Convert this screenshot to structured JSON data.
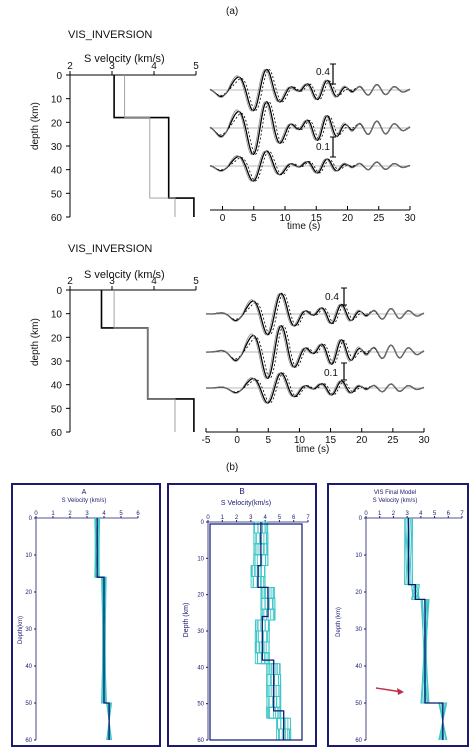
{
  "figure": {
    "label_a": "(a)",
    "label_b": "(b)"
  },
  "colors": {
    "profile": "#000000",
    "reference": "#999999",
    "ensemble": "#3cc6c6",
    "frame": "#1a1a6e",
    "best": "#0a1a70",
    "arrow": "#c0304a"
  },
  "chart_data": [
    {
      "type": "line",
      "panel": "a-top-velocity",
      "title": "VIS_INVERSION",
      "xlabel": "S velocity (km/s)",
      "ylabel": "depth (km)",
      "xlim": [
        2,
        5
      ],
      "ylim": [
        0,
        60
      ],
      "xticks": [
        "2",
        "3",
        "4",
        "5"
      ],
      "yticks": [
        "0",
        "10",
        "20",
        "30",
        "40",
        "50",
        "60"
      ],
      "series": [
        {
          "role": "model",
          "points": [
            [
              3.05,
              0
            ],
            [
              3.05,
              18
            ],
            [
              4.35,
              18
            ],
            [
              4.35,
              52
            ],
            [
              4.95,
              52
            ],
            [
              4.95,
              60
            ]
          ]
        },
        {
          "role": "reference",
          "points": [
            [
              3.3,
              0
            ],
            [
              3.3,
              18
            ],
            [
              3.9,
              18
            ],
            [
              3.9,
              52
            ],
            [
              4.5,
              52
            ],
            [
              4.5,
              60
            ]
          ]
        }
      ]
    },
    {
      "type": "line",
      "panel": "a-top-waveforms",
      "xlabel": "time (s)",
      "xlim": [
        -2,
        30
      ],
      "xticks": [
        "0",
        "5",
        "10",
        "15",
        "20",
        "25",
        "30"
      ],
      "scale_labels": [
        "0.4",
        "0.1"
      ]
    },
    {
      "type": "line",
      "panel": "a-bottom-velocity",
      "title": "VIS_INVERSION",
      "xlabel": "S velocity (km/s)",
      "ylabel": "depth (km)",
      "xlim": [
        2,
        5
      ],
      "ylim": [
        0,
        60
      ],
      "xticks": [
        "2",
        "3",
        "4",
        "5"
      ],
      "yticks": [
        "0",
        "10",
        "20",
        "30",
        "40",
        "50",
        "60"
      ],
      "series": [
        {
          "role": "model",
          "points": [
            [
              2.75,
              0
            ],
            [
              2.75,
              16
            ],
            [
              3.85,
              16
            ],
            [
              3.85,
              46
            ],
            [
              4.95,
              46
            ],
            [
              4.95,
              60
            ]
          ]
        },
        {
          "role": "reference",
          "points": [
            [
              3.05,
              0
            ],
            [
              3.05,
              16
            ],
            [
              3.85,
              16
            ],
            [
              3.85,
              46
            ],
            [
              4.5,
              46
            ],
            [
              4.5,
              60
            ]
          ]
        }
      ]
    },
    {
      "type": "line",
      "panel": "a-bottom-waveforms",
      "xlabel": "time (s)",
      "xlim": [
        -5,
        30
      ],
      "xticks": [
        "-5",
        "0",
        "5",
        "10",
        "15",
        "20",
        "25",
        "30"
      ],
      "scale_labels": [
        "0.4",
        "0.1"
      ]
    },
    {
      "type": "line",
      "panel": "b-A",
      "title": "A",
      "xlabel": "S Velocity (km/s)",
      "ylabel": "Depth(km)",
      "xlim": [
        0,
        6
      ],
      "ylim": [
        0,
        60
      ],
      "xticks": [
        "0",
        "1",
        "2",
        "3",
        "4",
        "5",
        "6"
      ],
      "yticks": [
        "0",
        "10",
        "20",
        "30",
        "40",
        "50",
        "60"
      ],
      "best": [
        [
          3.6,
          0
        ],
        [
          3.6,
          16
        ],
        [
          4.0,
          16
        ],
        [
          4.0,
          50
        ],
        [
          4.3,
          50
        ],
        [
          4.3,
          60
        ]
      ]
    },
    {
      "type": "line",
      "panel": "b-B",
      "title": "B",
      "xlabel": "S Velocity(km/s)",
      "ylabel": "Depth (km)",
      "xlim": [
        0,
        7
      ],
      "ylim": [
        0,
        60
      ],
      "xticks": [
        "0",
        "1",
        "2",
        "3",
        "4",
        "5",
        "6",
        "7"
      ],
      "yticks": [
        "0",
        "10",
        "20",
        "30",
        "40",
        "50",
        "60"
      ],
      "best": [
        [
          3.7,
          0
        ],
        [
          3.7,
          12
        ],
        [
          3.5,
          12
        ],
        [
          3.5,
          18
        ],
        [
          4.2,
          18
        ],
        [
          4.2,
          26
        ],
        [
          3.8,
          26
        ],
        [
          3.8,
          38
        ],
        [
          4.6,
          38
        ],
        [
          4.6,
          52
        ],
        [
          5.3,
          52
        ],
        [
          5.3,
          60
        ]
      ]
    },
    {
      "type": "line",
      "panel": "b-final",
      "title": "VIS Final Model",
      "xlabel": "S Velocity (km/s)",
      "ylabel": "Depth (km)",
      "xlim": [
        0,
        7
      ],
      "ylim": [
        0,
        60
      ],
      "xticks": [
        "0",
        "1",
        "2",
        "3",
        "4",
        "5",
        "6",
        "7"
      ],
      "yticks": [
        "0",
        "10",
        "20",
        "30",
        "40",
        "50",
        "60"
      ],
      "best": [
        [
          3.1,
          0
        ],
        [
          3.1,
          18
        ],
        [
          3.6,
          18
        ],
        [
          3.6,
          22
        ],
        [
          4.3,
          22
        ],
        [
          4.3,
          50
        ],
        [
          5.6,
          50
        ],
        [
          5.6,
          60
        ]
      ]
    }
  ]
}
